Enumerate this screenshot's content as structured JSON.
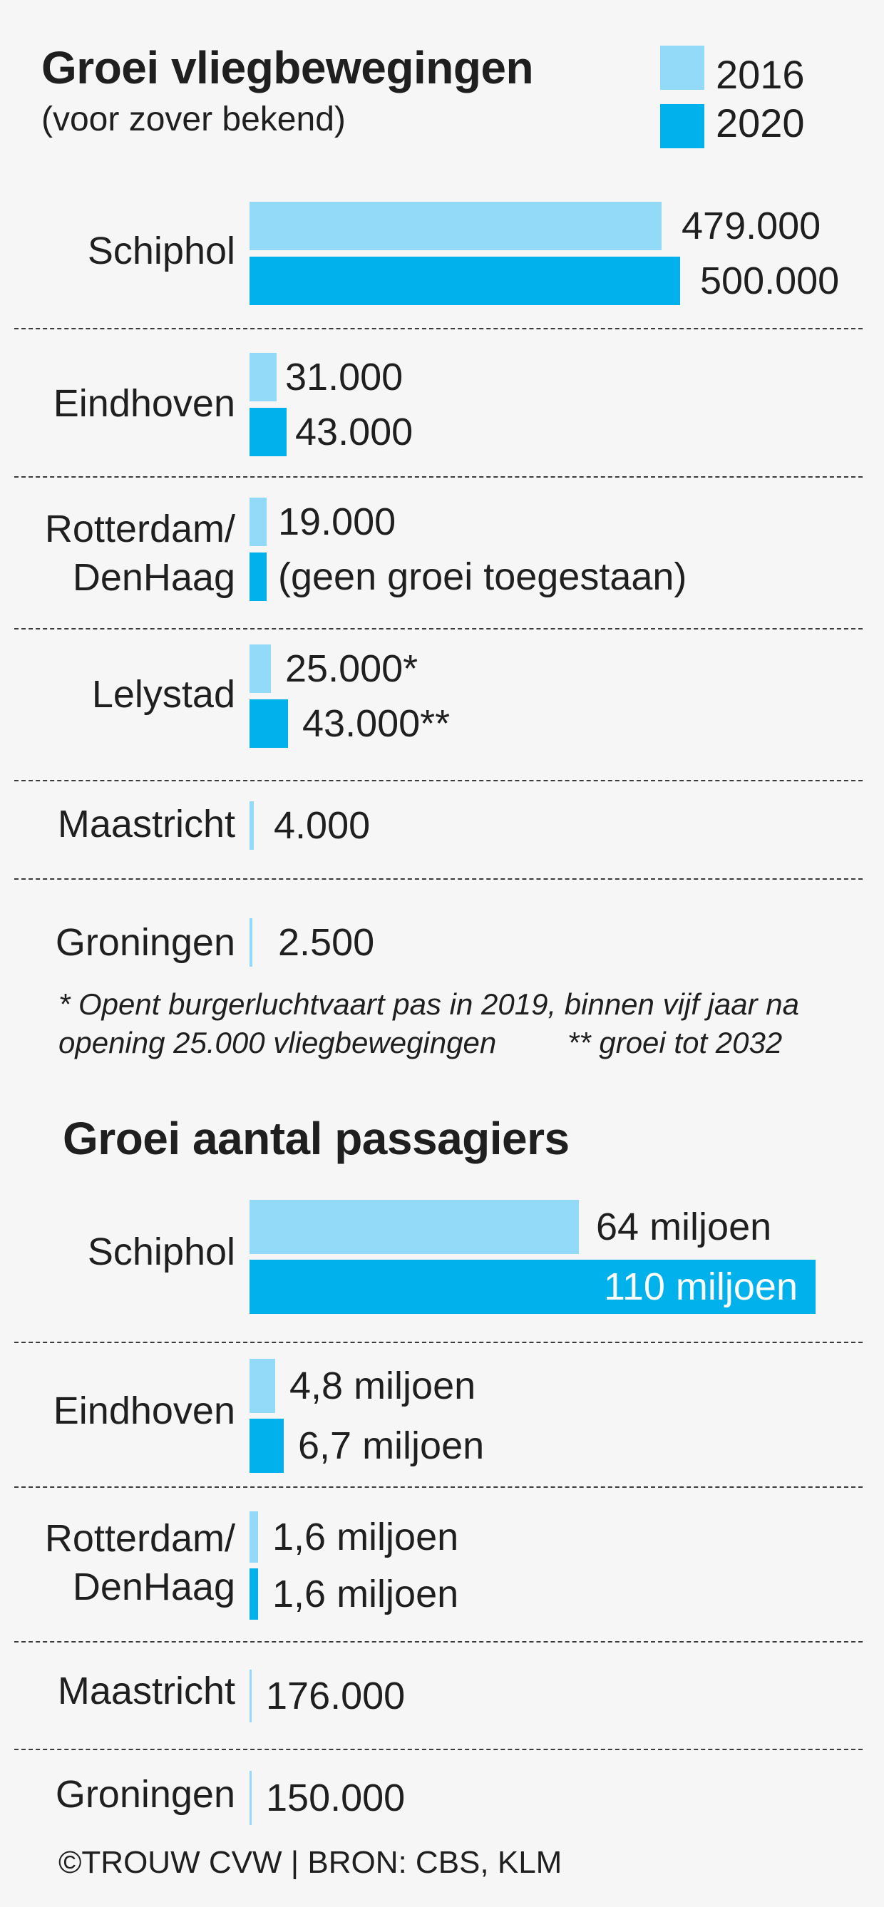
{
  "legend": [
    {
      "label": "2016",
      "color": "#93daf9"
    },
    {
      "label": "2020",
      "color": "#00b1ec"
    }
  ],
  "footnote": {
    "line1": "* Opent burgerluchtvaart pas in 2019, binnen vijf jaar na",
    "line2a": "opening 25.000 vliegbewegingen",
    "line2b": "** groei tot 2032"
  },
  "credit": "©TROUW CVW | BRON: CBS, KLM",
  "chart_data": [
    {
      "type": "bar",
      "orientation": "horizontal",
      "title": "Groei vliegbewegingen",
      "subtitle": "(voor zover bekend)",
      "categories": [
        "Schiphol",
        "Eindhoven",
        "Rotterdam/ DenHaag",
        "Lelystad",
        "Maastricht",
        "Groningen"
      ],
      "category_lines": [
        [
          "Schiphol"
        ],
        [
          "Eindhoven"
        ],
        [
          "Rotterdam/",
          "DenHaag"
        ],
        [
          "Lelystad"
        ],
        [
          "Maastricht"
        ],
        [
          "Groningen"
        ]
      ],
      "series": [
        {
          "name": "2016",
          "values": [
            479000,
            31000,
            19000,
            25000,
            4000,
            2500
          ],
          "labels": [
            "479.000",
            "31.000",
            "19.000",
            "25.000*",
            "4.000",
            "2.500"
          ]
        },
        {
          "name": "2020",
          "values": [
            500000,
            43000,
            19000,
            43000,
            null,
            null
          ],
          "labels": [
            "500.000",
            "43.000",
            "(geen groei toegestaan)",
            "43.000**",
            "",
            ""
          ]
        }
      ]
    },
    {
      "type": "bar",
      "orientation": "horizontal",
      "title": "Groei aantal passagiers",
      "categories": [
        "Schiphol",
        "Eindhoven",
        "Rotterdam/ DenHaag",
        "Maastricht",
        "Groningen"
      ],
      "category_lines": [
        [
          "Schiphol"
        ],
        [
          "Eindhoven"
        ],
        [
          "Rotterdam/",
          "DenHaag"
        ],
        [
          "Maastricht"
        ],
        [
          "Groningen"
        ]
      ],
      "series": [
        {
          "name": "2016",
          "values": [
            64000000,
            4800000,
            1600000,
            176000,
            150000
          ],
          "labels": [
            "64 miljoen",
            "4,8 miljoen",
            "1,6 miljoen",
            "176.000",
            "150.000"
          ]
        },
        {
          "name": "2020",
          "values": [
            110000000,
            6700000,
            1600000,
            null,
            null
          ],
          "labels": [
            "110 miljoen",
            "6,7 miljoen",
            "1,6 miljoen",
            "",
            ""
          ]
        }
      ]
    }
  ]
}
